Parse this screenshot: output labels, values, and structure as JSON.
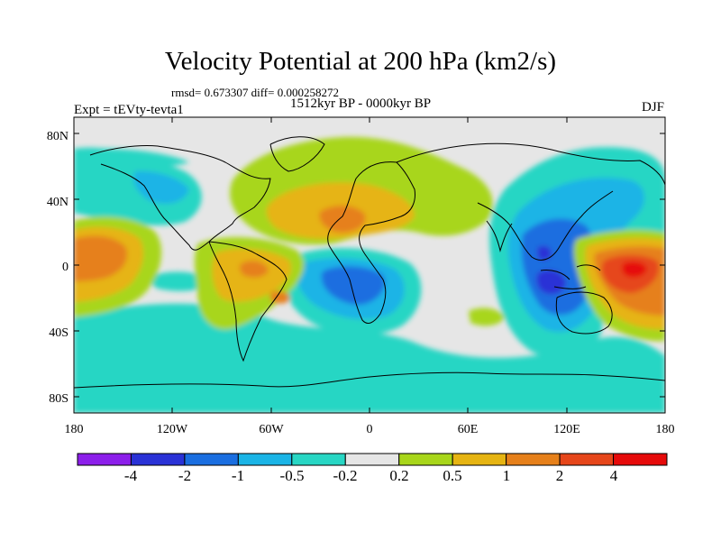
{
  "title": "Velocity Potential at 200 hPa (km2/s)",
  "stats_line": "rmsd= 0.673307 diff= 0.000258272",
  "period": "1512kyr BP - 0000kyr BP",
  "experiment": "Expt = tEVty-tevta1",
  "season": "DJF",
  "map": {
    "x_ticks": [
      "180",
      "120W",
      "60W",
      "0",
      "60E",
      "120E",
      "180"
    ],
    "y_ticks": [
      "80N",
      "40N",
      "0",
      "40S",
      "80S"
    ],
    "lon_range": [
      -180,
      180
    ],
    "lat_range": [
      -90,
      90
    ],
    "background": "#e6e6e6"
  },
  "colorbar": {
    "colors": [
      "#8c1fea",
      "#2a32d6",
      "#1a6ee0",
      "#1ab4e6",
      "#28d6c4",
      "#e6e6e6",
      "#a8d61a",
      "#e6b412",
      "#e6801a",
      "#e6461a",
      "#e60a0a"
    ],
    "labels": [
      "-4",
      "-2",
      "-1",
      "-0.5",
      "-0.2",
      "0.2",
      "0.5",
      "1",
      "2",
      "4"
    ]
  },
  "chart_data": {
    "type": "heatmap",
    "title": "Velocity Potential at 200 hPa (km2/s)",
    "subtitle": "1512kyr BP - 0000kyr BP",
    "xlabel": "",
    "ylabel": "",
    "xlim": [
      -180,
      180
    ],
    "ylim": [
      -90,
      90
    ],
    "contour_levels": [
      -4,
      -2,
      -1,
      -0.5,
      -0.2,
      0.2,
      0.5,
      1,
      2,
      4
    ],
    "features": [
      {
        "region": "Central Pacific (equatorial)",
        "sign": "positive",
        "peak_value": 2
      },
      {
        "region": "Western Pacific (equatorial)",
        "sign": "positive",
        "peak_value": 4
      },
      {
        "region": "Maritime Continent / Indian Ocean",
        "sign": "negative",
        "peak_value": -2
      },
      {
        "region": "South Atlantic",
        "sign": "negative",
        "peak_value": -1
      },
      {
        "region": "North Atlantic / North Africa",
        "sign": "positive",
        "peak_value": 1
      },
      {
        "region": "South America",
        "sign": "positive",
        "peak_value": 1
      },
      {
        "region": "Eastern Asia / Siberia",
        "sign": "negative",
        "peak_value": -1
      }
    ]
  }
}
